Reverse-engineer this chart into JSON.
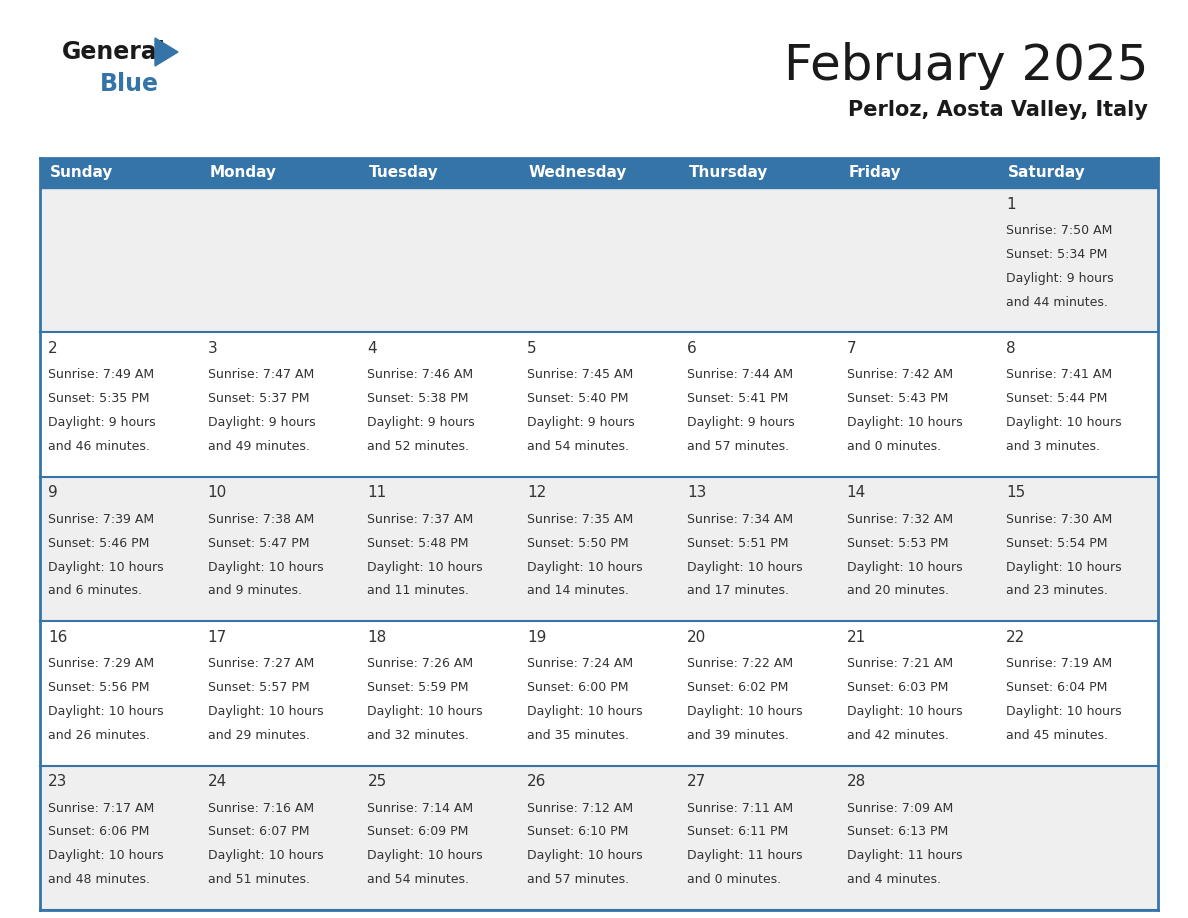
{
  "title": "February 2025",
  "subtitle": "Perloz, Aosta Valley, Italy",
  "header_color": "#3574a8",
  "header_text_color": "#ffffff",
  "day_names": [
    "Sunday",
    "Monday",
    "Tuesday",
    "Wednesday",
    "Thursday",
    "Friday",
    "Saturday"
  ],
  "background_color": "#ffffff",
  "cell_bg_light": "#efefef",
  "cell_bg_white": "#ffffff",
  "text_color": "#333333",
  "border_color": "#3574a8",
  "title_fontsize": 36,
  "subtitle_fontsize": 15,
  "day_number_fontsize": 11,
  "cell_text_fontsize": 9,
  "header_fontsize": 11,
  "days": [
    {
      "day": 1,
      "col": 6,
      "row": 0,
      "sunrise": "7:50 AM",
      "sunset": "5:34 PM",
      "daylight": "9 hours and 44 minutes."
    },
    {
      "day": 2,
      "col": 0,
      "row": 1,
      "sunrise": "7:49 AM",
      "sunset": "5:35 PM",
      "daylight": "9 hours and 46 minutes."
    },
    {
      "day": 3,
      "col": 1,
      "row": 1,
      "sunrise": "7:47 AM",
      "sunset": "5:37 PM",
      "daylight": "9 hours and 49 minutes."
    },
    {
      "day": 4,
      "col": 2,
      "row": 1,
      "sunrise": "7:46 AM",
      "sunset": "5:38 PM",
      "daylight": "9 hours and 52 minutes."
    },
    {
      "day": 5,
      "col": 3,
      "row": 1,
      "sunrise": "7:45 AM",
      "sunset": "5:40 PM",
      "daylight": "9 hours and 54 minutes."
    },
    {
      "day": 6,
      "col": 4,
      "row": 1,
      "sunrise": "7:44 AM",
      "sunset": "5:41 PM",
      "daylight": "9 hours and 57 minutes."
    },
    {
      "day": 7,
      "col": 5,
      "row": 1,
      "sunrise": "7:42 AM",
      "sunset": "5:43 PM",
      "daylight": "10 hours and 0 minutes."
    },
    {
      "day": 8,
      "col": 6,
      "row": 1,
      "sunrise": "7:41 AM",
      "sunset": "5:44 PM",
      "daylight": "10 hours and 3 minutes."
    },
    {
      "day": 9,
      "col": 0,
      "row": 2,
      "sunrise": "7:39 AM",
      "sunset": "5:46 PM",
      "daylight": "10 hours and 6 minutes."
    },
    {
      "day": 10,
      "col": 1,
      "row": 2,
      "sunrise": "7:38 AM",
      "sunset": "5:47 PM",
      "daylight": "10 hours and 9 minutes."
    },
    {
      "day": 11,
      "col": 2,
      "row": 2,
      "sunrise": "7:37 AM",
      "sunset": "5:48 PM",
      "daylight": "10 hours and 11 minutes."
    },
    {
      "day": 12,
      "col": 3,
      "row": 2,
      "sunrise": "7:35 AM",
      "sunset": "5:50 PM",
      "daylight": "10 hours and 14 minutes."
    },
    {
      "day": 13,
      "col": 4,
      "row": 2,
      "sunrise": "7:34 AM",
      "sunset": "5:51 PM",
      "daylight": "10 hours and 17 minutes."
    },
    {
      "day": 14,
      "col": 5,
      "row": 2,
      "sunrise": "7:32 AM",
      "sunset": "5:53 PM",
      "daylight": "10 hours and 20 minutes."
    },
    {
      "day": 15,
      "col": 6,
      "row": 2,
      "sunrise": "7:30 AM",
      "sunset": "5:54 PM",
      "daylight": "10 hours and 23 minutes."
    },
    {
      "day": 16,
      "col": 0,
      "row": 3,
      "sunrise": "7:29 AM",
      "sunset": "5:56 PM",
      "daylight": "10 hours and 26 minutes."
    },
    {
      "day": 17,
      "col": 1,
      "row": 3,
      "sunrise": "7:27 AM",
      "sunset": "5:57 PM",
      "daylight": "10 hours and 29 minutes."
    },
    {
      "day": 18,
      "col": 2,
      "row": 3,
      "sunrise": "7:26 AM",
      "sunset": "5:59 PM",
      "daylight": "10 hours and 32 minutes."
    },
    {
      "day": 19,
      "col": 3,
      "row": 3,
      "sunrise": "7:24 AM",
      "sunset": "6:00 PM",
      "daylight": "10 hours and 35 minutes."
    },
    {
      "day": 20,
      "col": 4,
      "row": 3,
      "sunrise": "7:22 AM",
      "sunset": "6:02 PM",
      "daylight": "10 hours and 39 minutes."
    },
    {
      "day": 21,
      "col": 5,
      "row": 3,
      "sunrise": "7:21 AM",
      "sunset": "6:03 PM",
      "daylight": "10 hours and 42 minutes."
    },
    {
      "day": 22,
      "col": 6,
      "row": 3,
      "sunrise": "7:19 AM",
      "sunset": "6:04 PM",
      "daylight": "10 hours and 45 minutes."
    },
    {
      "day": 23,
      "col": 0,
      "row": 4,
      "sunrise": "7:17 AM",
      "sunset": "6:06 PM",
      "daylight": "10 hours and 48 minutes."
    },
    {
      "day": 24,
      "col": 1,
      "row": 4,
      "sunrise": "7:16 AM",
      "sunset": "6:07 PM",
      "daylight": "10 hours and 51 minutes."
    },
    {
      "day": 25,
      "col": 2,
      "row": 4,
      "sunrise": "7:14 AM",
      "sunset": "6:09 PM",
      "daylight": "10 hours and 54 minutes."
    },
    {
      "day": 26,
      "col": 3,
      "row": 4,
      "sunrise": "7:12 AM",
      "sunset": "6:10 PM",
      "daylight": "10 hours and 57 minutes."
    },
    {
      "day": 27,
      "col": 4,
      "row": 4,
      "sunrise": "7:11 AM",
      "sunset": "6:11 PM",
      "daylight": "11 hours and 0 minutes."
    },
    {
      "day": 28,
      "col": 5,
      "row": 4,
      "sunrise": "7:09 AM",
      "sunset": "6:13 PM",
      "daylight": "11 hours and 4 minutes."
    }
  ]
}
